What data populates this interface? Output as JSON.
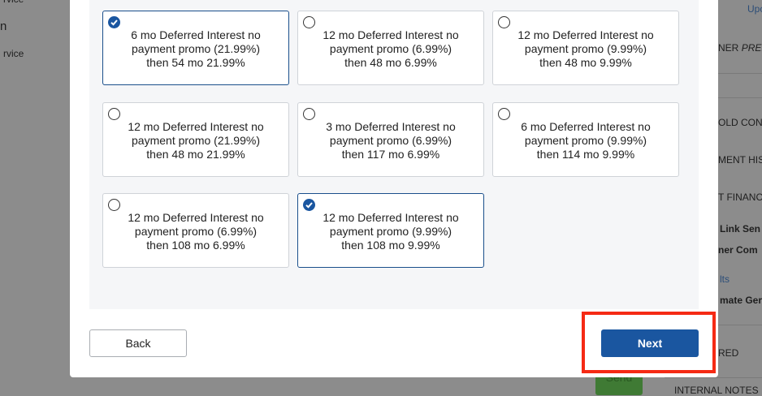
{
  "background": {
    "left": [
      "rvice",
      "n",
      "rvice"
    ],
    "right": [
      "Upc",
      "NER",
      "PRED",
      "OLD CONT",
      "MENT HIST",
      "T FINANCI",
      "Link Sen",
      "ner Com",
      "lts",
      "mate Ger",
      "RED",
      "INTERNAL NOTES"
    ],
    "send": "Send"
  },
  "options": [
    {
      "lines": [
        "6 mo Deferred Interest no",
        "payment promo (21.99%)",
        "then 54 mo 21.99%"
      ],
      "checked": true
    },
    {
      "lines": [
        "12 mo Deferred Interest no",
        "payment promo (6.99%)",
        "then 48 mo 6.99%"
      ],
      "checked": false
    },
    {
      "lines": [
        "12 mo Deferred Interest no",
        "payment promo (9.99%)",
        "then 48 mo 9.99%"
      ],
      "checked": false
    },
    {
      "lines": [
        "12 mo Deferred Interest no",
        "payment promo (21.99%)",
        "then 48 mo 21.99%"
      ],
      "checked": false
    },
    {
      "lines": [
        "3 mo Deferred Interest no",
        "payment promo (6.99%)",
        "then 117 mo 6.99%"
      ],
      "checked": false
    },
    {
      "lines": [
        "6 mo Deferred Interest no",
        "payment promo (9.99%)",
        "then 114 mo 9.99%"
      ],
      "checked": false
    },
    {
      "lines": [
        "12 mo Deferred Interest no",
        "payment promo (6.99%)",
        "then 108 mo 6.99%"
      ],
      "checked": false
    },
    {
      "lines": [
        "12 mo Deferred Interest no",
        "payment promo (9.99%)",
        "then 108 mo 9.99%"
      ],
      "checked": true
    }
  ],
  "buttons": {
    "back": "Back",
    "next": "Next"
  }
}
